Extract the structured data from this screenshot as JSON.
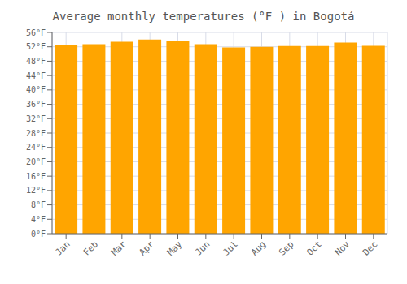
{
  "chart_data": {
    "type": "bar",
    "title": "Average monthly temperatures (°F ) in Bogotá",
    "categories": [
      "Jan",
      "Feb",
      "Mar",
      "Apr",
      "May",
      "Jun",
      "Jul",
      "Aug",
      "Sep",
      "Oct",
      "Nov",
      "Dec"
    ],
    "values": [
      52.5,
      52.7,
      53.4,
      54.0,
      53.6,
      52.7,
      51.8,
      52.0,
      52.2,
      52.2,
      53.2,
      52.3
    ],
    "color": "#FFA500",
    "ylim": [
      0,
      56
    ],
    "yticks": [
      {
        "value": 0,
        "label": "0°F"
      },
      {
        "value": 4,
        "label": "4°F"
      },
      {
        "value": 8,
        "label": "8°F"
      },
      {
        "value": 12,
        "label": "12°F"
      },
      {
        "value": 16,
        "label": "16°F"
      },
      {
        "value": 20,
        "label": "20°F"
      },
      {
        "value": 24,
        "label": "24°F"
      },
      {
        "value": 28,
        "label": "28°F"
      },
      {
        "value": 32,
        "label": "32°F"
      },
      {
        "value": 36,
        "label": "36°F"
      },
      {
        "value": 40,
        "label": "40°F"
      },
      {
        "value": 44,
        "label": "44°F"
      },
      {
        "value": 48,
        "label": "48°F"
      },
      {
        "value": 52,
        "label": "52°F"
      },
      {
        "value": 56,
        "label": "56°F"
      }
    ],
    "grid": true
  }
}
